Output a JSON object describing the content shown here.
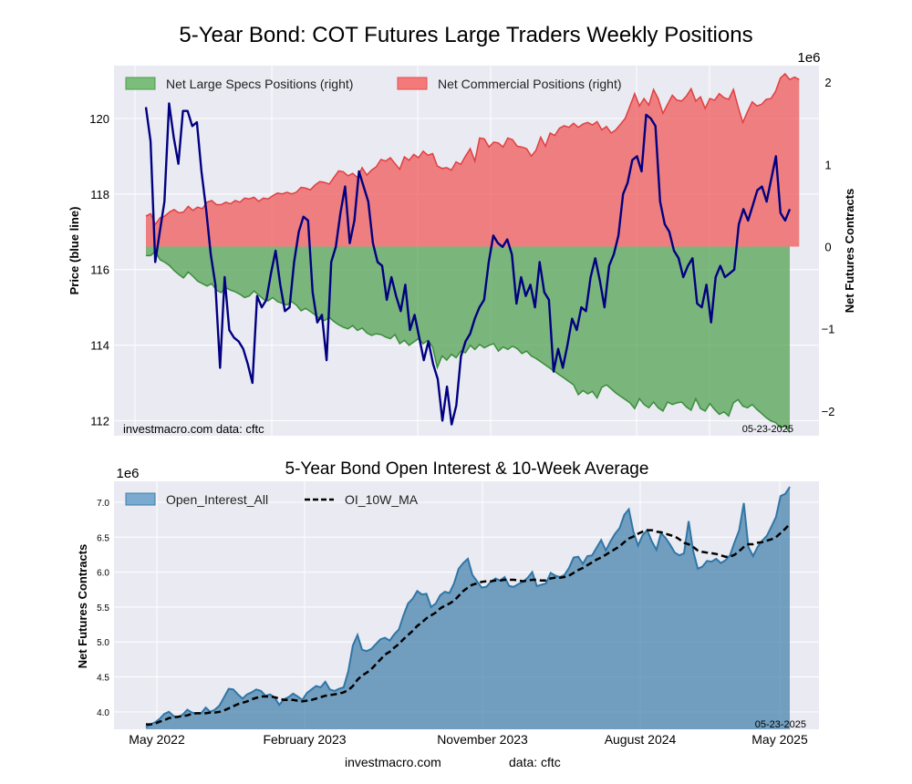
{
  "chart_data": [
    {
      "type": "line",
      "title": "5-Year Bond: COT Futures Large Traders Weekly Positions",
      "ylabel_left": "Price (blue line)",
      "ylabel_right": "Net Futures Contracts",
      "right_axis_multiplier": "1e6",
      "ylim_left": [
        111.6,
        121.4
      ],
      "yticks_left": [
        "112",
        "114",
        "116",
        "118",
        "120"
      ],
      "ylim_right": [
        -2.3,
        2.2
      ],
      "yticks_right": [
        "-2",
        "-1",
        "0",
        "1",
        "2"
      ],
      "x_range": [
        "2022-05",
        "2025-05"
      ],
      "legend": [
        {
          "label": "Net Large Specs Positions (right)",
          "color": "#4a9e4a"
        },
        {
          "label": "Net Commercial Positions (right)",
          "color": "#f06060"
        }
      ],
      "legend_position": "top-left",
      "watermark": "investmacro.com    data: cftc",
      "date_stamp": "05-23-2025",
      "series": [
        {
          "name": "Price",
          "color": "#000080",
          "values": [
            120.3,
            119.4,
            116.2,
            117.0,
            117.8,
            120.4,
            119.5,
            118.8,
            120.2,
            120.2,
            119.8,
            119.9,
            118.6,
            117.6,
            116.4,
            115.6,
            113.4,
            115.8,
            114.4,
            114.2,
            114.1,
            113.9,
            113.5,
            113.0,
            115.3,
            115.0,
            115.2,
            115.9,
            116.5,
            115.6,
            114.9,
            115.0,
            116.2,
            117.0,
            117.4,
            117.3,
            115.4,
            114.6,
            114.8,
            113.6,
            116.2,
            116.6,
            117.5,
            118.2,
            116.7,
            117.3,
            118.6,
            118.2,
            117.8,
            116.7,
            116.2,
            116.1,
            115.2,
            115.8,
            115.3,
            114.9,
            115.6,
            114.4,
            114.8,
            114.2,
            113.6,
            114.1,
            113.5,
            113.1,
            112.0,
            112.9,
            111.9,
            112.4,
            113.7,
            114.1,
            114.3,
            114.7,
            115.0,
            115.2,
            116.2,
            116.9,
            116.7,
            116.6,
            116.8,
            116.4,
            115.1,
            115.8,
            115.3,
            115.6,
            115.0,
            116.2,
            115.4,
            115.2,
            113.3,
            113.9,
            113.4,
            114.0,
            114.7,
            114.4,
            115.0,
            114.9,
            115.8,
            116.3,
            115.7,
            115.0,
            116.1,
            116.4,
            116.9,
            118.0,
            118.3,
            118.9,
            119.0,
            118.6,
            120.1,
            120.0,
            119.8,
            117.8,
            117.2,
            117.0,
            116.5,
            116.3,
            115.8,
            116.1,
            116.3,
            115.1,
            115.0,
            115.6,
            114.6,
            115.8,
            116.1,
            115.8,
            115.9,
            116.0,
            117.2,
            117.6,
            117.3,
            117.7,
            118.1,
            118.2,
            117.8,
            118.4,
            119.0,
            117.5,
            117.3,
            117.6
          ]
        },
        {
          "name": "Net Large Specs Positions",
          "color": "#4a9e4a",
          "values_millions": [
            -0.11,
            -0.11,
            -0.06,
            -0.16,
            -0.19,
            -0.23,
            -0.29,
            -0.34,
            -0.38,
            -0.31,
            -0.36,
            -0.42,
            -0.45,
            -0.48,
            -0.45,
            -0.53,
            -0.56,
            -0.5,
            -0.53,
            -0.55,
            -0.58,
            -0.62,
            -0.6,
            -0.54,
            -0.59,
            -0.64,
            -0.66,
            -0.62,
            -0.67,
            -0.69,
            -0.71,
            -0.67,
            -0.71,
            -0.78,
            -0.75,
            -0.79,
            -0.83,
            -0.88,
            -0.9,
            -0.86,
            -0.91,
            -0.95,
            -0.98,
            -1.0,
            -0.96,
            -1.02,
            -0.99,
            -1.05,
            -1.08,
            -1.06,
            -1.07,
            -1.1,
            -1.12,
            -1.07,
            -1.18,
            -1.14,
            -1.2,
            -1.16,
            -1.12,
            -1.18,
            -1.14,
            -1.22,
            -1.47,
            -1.33,
            -1.38,
            -1.31,
            -1.35,
            -1.27,
            -1.29,
            -1.2,
            -1.25,
            -1.19,
            -1.23,
            -1.2,
            -1.18,
            -1.27,
            -1.22,
            -1.25,
            -1.21,
            -1.24,
            -1.3,
            -1.27,
            -1.33,
            -1.36,
            -1.4,
            -1.44,
            -1.48,
            -1.52,
            -1.56,
            -1.6,
            -1.64,
            -1.68,
            -1.8,
            -1.75,
            -1.79,
            -1.76,
            -1.84,
            -1.71,
            -1.68,
            -1.73,
            -1.78,
            -1.82,
            -1.86,
            -1.9,
            -1.97,
            -1.85,
            -1.92,
            -1.96,
            -1.89,
            -1.96,
            -2.0,
            -1.89,
            -1.92,
            -1.9,
            -1.89,
            -1.95,
            -1.99,
            -1.85,
            -1.97,
            -2.0,
            -1.91,
            -1.98,
            -2.04,
            -2.01,
            -2.06,
            -1.9,
            -1.86,
            -1.94,
            -1.96,
            -1.92,
            -1.98,
            -2.03,
            -2.08,
            -2.12,
            -2.14,
            -2.2,
            -2.18,
            -2.26
          ]
        },
        {
          "name": "Net Commercial Positions",
          "color": "#f06060",
          "values_millions": [
            0.37,
            0.4,
            0.27,
            0.35,
            0.37,
            0.42,
            0.45,
            0.41,
            0.42,
            0.49,
            0.44,
            0.48,
            0.46,
            0.54,
            0.56,
            0.51,
            0.51,
            0.54,
            0.52,
            0.56,
            0.54,
            0.59,
            0.58,
            0.6,
            0.55,
            0.59,
            0.58,
            0.62,
            0.65,
            0.64,
            0.66,
            0.64,
            0.66,
            0.72,
            0.71,
            0.69,
            0.75,
            0.79,
            0.78,
            0.76,
            0.84,
            0.92,
            0.91,
            0.86,
            0.89,
            0.84,
            0.96,
            0.87,
            0.93,
            0.97,
            1.06,
            1.04,
            1.08,
            1.01,
            0.94,
            1.09,
            1.05,
            1.12,
            1.08,
            1.16,
            1.11,
            1.13,
            0.98,
            0.95,
            0.96,
            0.93,
            1.03,
            1.0,
            1.1,
            1.19,
            1.04,
            1.32,
            1.31,
            1.21,
            1.27,
            1.26,
            1.21,
            1.32,
            1.3,
            1.22,
            1.21,
            1.19,
            1.1,
            1.17,
            1.33,
            1.22,
            1.38,
            1.35,
            1.44,
            1.47,
            1.45,
            1.5,
            1.45,
            1.49,
            1.51,
            1.48,
            1.52,
            1.42,
            1.46,
            1.38,
            1.42,
            1.49,
            1.56,
            1.71,
            1.86,
            1.71,
            1.8,
            1.72,
            1.91,
            1.8,
            1.62,
            1.73,
            1.84,
            1.78,
            1.77,
            1.83,
            1.92,
            1.77,
            1.82,
            1.68,
            1.8,
            1.78,
            1.86,
            1.81,
            1.79,
            1.91,
            1.7,
            1.51,
            1.64,
            1.76,
            1.71,
            1.73,
            1.79,
            1.8,
            1.89,
            2.05,
            2.1,
            2.03,
            2.06,
            2.03
          ]
        }
      ]
    },
    {
      "type": "area",
      "title": "5-Year Bond Open Interest & 10-Week Average",
      "ylabel": "Net Futures Contracts",
      "y_multiplier": "1e6",
      "ylim": [
        3.75,
        7.3
      ],
      "yticks": [
        "4.0",
        "4.5",
        "5.0",
        "5.5",
        "6.0",
        "6.5",
        "7.0"
      ],
      "xticks": [
        "May 2022",
        "February 2023",
        "November 2023",
        "August 2024",
        "May 2025"
      ],
      "legend": [
        {
          "label": "Open_Interest_All",
          "color": "#4a8ab8"
        },
        {
          "label": "OI_10W_MA",
          "color": "#000000"
        }
      ],
      "legend_position": "top-left",
      "date_stamp": "05-23-2025",
      "series": [
        {
          "name": "Open_Interest_All",
          "values_millions": [
            3.78,
            3.82,
            3.85,
            3.9,
            3.97,
            4.0,
            3.94,
            3.92,
            3.96,
            4.03,
            3.99,
            3.98,
            3.98,
            4.06,
            4.0,
            4.03,
            4.09,
            4.21,
            4.33,
            4.32,
            4.25,
            4.19,
            4.25,
            4.28,
            4.32,
            4.3,
            4.23,
            4.25,
            4.2,
            4.1,
            4.18,
            4.21,
            4.26,
            4.22,
            4.17,
            4.27,
            4.32,
            4.37,
            4.35,
            4.43,
            4.32,
            4.3,
            4.33,
            4.35,
            4.58,
            4.95,
            5.1,
            4.89,
            4.87,
            4.9,
            4.97,
            5.04,
            5.06,
            5.02,
            5.11,
            5.18,
            5.38,
            5.55,
            5.62,
            5.73,
            5.68,
            5.69,
            5.5,
            5.55,
            5.67,
            5.72,
            5.7,
            5.84,
            6.05,
            6.13,
            6.19,
            5.96,
            5.87,
            5.78,
            5.79,
            5.86,
            5.91,
            5.88,
            5.93,
            5.8,
            5.79,
            5.83,
            5.86,
            5.92,
            6.0,
            5.8,
            5.82,
            5.84,
            5.99,
            5.95,
            5.93,
            5.96,
            6.06,
            6.21,
            6.22,
            6.12,
            6.23,
            6.24,
            6.35,
            6.46,
            6.31,
            6.44,
            6.55,
            6.63,
            6.82,
            6.9,
            6.58,
            6.38,
            6.53,
            6.6,
            6.44,
            6.32,
            6.56,
            6.49,
            6.39,
            6.28,
            6.24,
            6.27,
            6.73,
            6.3,
            6.05,
            6.08,
            6.16,
            6.15,
            6.19,
            6.13,
            6.17,
            6.24,
            6.43,
            6.6,
            6.99,
            6.36,
            6.23,
            6.36,
            6.45,
            6.52,
            6.65,
            6.79,
            7.09,
            7.12,
            7.22
          ]
        },
        {
          "name": "OI_10W_MA",
          "values_millions": [
            3.82,
            3.82,
            3.83,
            3.86,
            3.88,
            3.91,
            3.92,
            3.93,
            3.94,
            3.95,
            3.97,
            3.98,
            3.98,
            3.98,
            3.99,
            3.99,
            4.0,
            4.02,
            4.05,
            4.08,
            4.11,
            4.13,
            4.15,
            4.18,
            4.2,
            4.22,
            4.22,
            4.22,
            4.21,
            4.19,
            4.17,
            4.17,
            4.17,
            4.16,
            4.15,
            4.16,
            4.17,
            4.19,
            4.21,
            4.23,
            4.24,
            4.25,
            4.26,
            4.28,
            4.31,
            4.37,
            4.46,
            4.52,
            4.56,
            4.61,
            4.68,
            4.75,
            4.82,
            4.86,
            4.92,
            4.97,
            5.04,
            5.1,
            5.16,
            5.23,
            5.28,
            5.34,
            5.38,
            5.42,
            5.48,
            5.52,
            5.55,
            5.59,
            5.66,
            5.73,
            5.78,
            5.82,
            5.84,
            5.86,
            5.87,
            5.87,
            5.88,
            5.88,
            5.89,
            5.89,
            5.89,
            5.88,
            5.87,
            5.88,
            5.89,
            5.89,
            5.88,
            5.88,
            5.91,
            5.92,
            5.92,
            5.93,
            5.95,
            5.99,
            6.03,
            6.06,
            6.1,
            6.14,
            6.18,
            6.21,
            6.25,
            6.29,
            6.33,
            6.37,
            6.43,
            6.48,
            6.51,
            6.55,
            6.58,
            6.6,
            6.6,
            6.58,
            6.57,
            6.55,
            6.53,
            6.51,
            6.47,
            6.42,
            6.4,
            6.36,
            6.31,
            6.29,
            6.28,
            6.27,
            6.26,
            6.24,
            6.22,
            6.22,
            6.25,
            6.3,
            6.36,
            6.4,
            6.4,
            6.42,
            6.43,
            6.45,
            6.47,
            6.5,
            6.56,
            6.62,
            6.69
          ]
        }
      ]
    }
  ],
  "footer": {
    "site": "investmacro.com",
    "source": "data: cftc"
  }
}
